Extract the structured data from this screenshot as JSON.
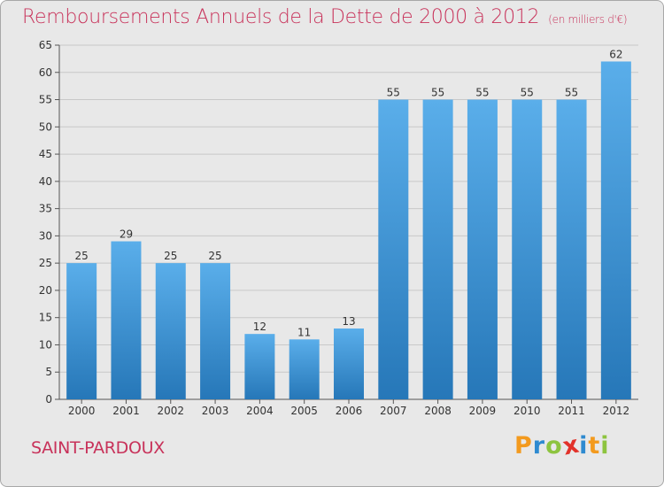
{
  "header": {
    "title": "Remboursements Annuels de la Dette de 2000 à 2012",
    "unit": "(en milliers d'€)"
  },
  "footer": {
    "commune": "SAINT-PARDOUX"
  },
  "logo": {
    "text": "Proxiti",
    "letters": [
      {
        "char": "P",
        "color": "#f39a1e"
      },
      {
        "char": "r",
        "color": "#2e8ad0"
      },
      {
        "char": "o",
        "color": "#8dc43f"
      },
      {
        "char": "x",
        "color": "#e2322a"
      },
      {
        "char": "i",
        "color": "#2e8ad0"
      },
      {
        "char": "t",
        "color": "#f39a1e"
      },
      {
        "char": "i",
        "color": "#8dc43f"
      }
    ]
  },
  "colors": {
    "accent": "#c8325a",
    "bar_top": "#5aaeea",
    "bar_bottom": "#2677b8",
    "grid": "#c8c8c8",
    "background": "#e8e8e8"
  },
  "chart_data": {
    "type": "bar",
    "title": "Remboursements Annuels de la Dette de 2000 à 2012",
    "xlabel": "",
    "ylabel": "",
    "categories": [
      "2000",
      "2001",
      "2002",
      "2003",
      "2004",
      "2005",
      "2006",
      "2007",
      "2008",
      "2009",
      "2010",
      "2011",
      "2012"
    ],
    "values": [
      25,
      29,
      25,
      25,
      12,
      11,
      13,
      55,
      55,
      55,
      55,
      55,
      62
    ],
    "ylim": [
      0,
      65
    ],
    "yticks": [
      0,
      5,
      10,
      15,
      20,
      25,
      30,
      35,
      40,
      45,
      50,
      55,
      60,
      65
    ],
    "grid": true,
    "legend": "none"
  }
}
